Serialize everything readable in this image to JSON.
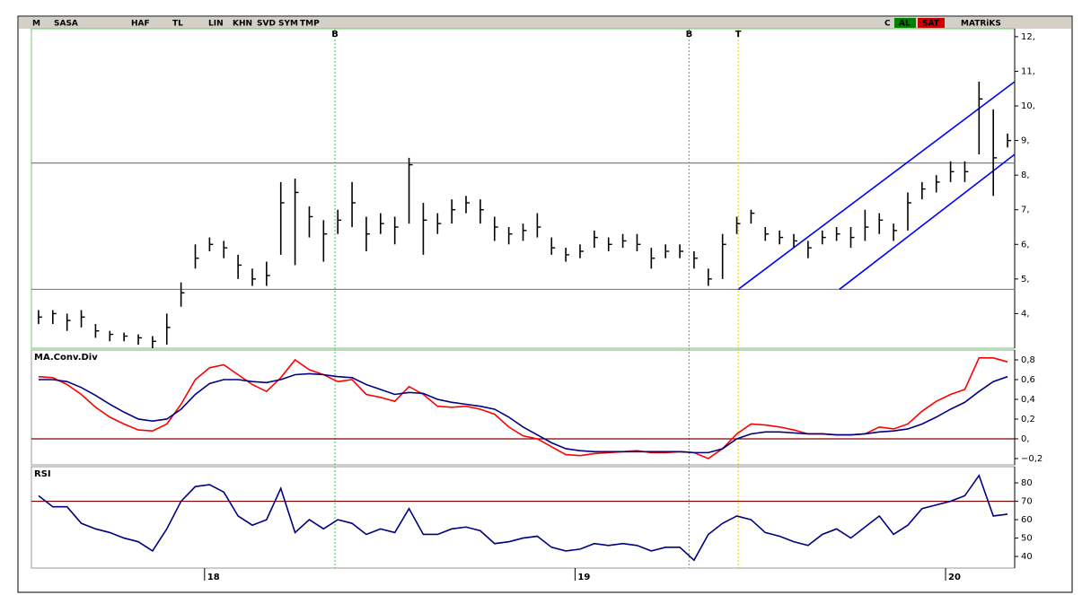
{
  "toolbar": {
    "logo": "M",
    "symbol": "SASA",
    "buttons": [
      "HAF",
      "TL",
      "LIN",
      "KHN",
      "SVD",
      "SYM",
      "TMP"
    ],
    "right": [
      "C",
      "AL",
      "SAT"
    ],
    "brand": "MATRiKS"
  },
  "chart_data": [
    {
      "type": "ohlc",
      "color": "#000000",
      "x": [
        1,
        3,
        5,
        7,
        9,
        11,
        13,
        15,
        17,
        19,
        21,
        23,
        25,
        27,
        29,
        31,
        33,
        35,
        37,
        39,
        41,
        43,
        45,
        47,
        49,
        51,
        53,
        55,
        57,
        59,
        61,
        63,
        65,
        67,
        69,
        71,
        73,
        75,
        77,
        79,
        81,
        83,
        85,
        87,
        89,
        91,
        93,
        95,
        97,
        99,
        101,
        103,
        105,
        107,
        109,
        111,
        113,
        115,
        117,
        119,
        121,
        123,
        125,
        127,
        129,
        131,
        133,
        135,
        137
      ],
      "high": [
        4.1,
        4.1,
        4.0,
        4.1,
        3.7,
        3.5,
        3.45,
        3.4,
        3.35,
        4.0,
        4.9,
        6.0,
        6.2,
        6.1,
        5.7,
        5.3,
        5.5,
        7.8,
        7.9,
        7.1,
        6.7,
        7.0,
        7.8,
        6.8,
        6.9,
        6.8,
        8.5,
        7.2,
        6.9,
        7.3,
        7.4,
        7.3,
        6.8,
        6.5,
        6.6,
        6.9,
        6.2,
        5.9,
        6.0,
        6.4,
        6.2,
        6.3,
        6.3,
        5.9,
        6.0,
        6.0,
        5.8,
        5.3,
        6.3,
        6.8,
        7.0,
        6.5,
        6.4,
        6.3,
        6.1,
        6.4,
        6.5,
        6.5,
        7.0,
        6.9,
        6.6,
        7.5,
        7.8,
        8.0,
        8.4,
        8.4,
        10.7,
        9.9,
        9.2
      ],
      "low": [
        3.7,
        3.7,
        3.5,
        3.6,
        3.3,
        3.2,
        3.2,
        3.1,
        3.0,
        3.1,
        4.2,
        5.3,
        5.8,
        5.6,
        5.0,
        4.8,
        4.8,
        5.7,
        5.4,
        6.2,
        5.5,
        6.3,
        6.5,
        5.8,
        6.3,
        6.0,
        6.6,
        5.7,
        6.3,
        6.6,
        6.9,
        6.6,
        6.1,
        6.0,
        6.1,
        6.2,
        5.7,
        5.5,
        5.6,
        5.9,
        5.8,
        5.9,
        5.8,
        5.3,
        5.6,
        5.6,
        5.3,
        4.8,
        5.0,
        6.3,
        6.6,
        6.1,
        6.0,
        5.9,
        5.6,
        6.0,
        6.1,
        5.9,
        6.1,
        6.3,
        6.1,
        6.4,
        7.3,
        7.5,
        7.8,
        7.8,
        8.6,
        7.4,
        8.8
      ],
      "close": [
        3.9,
        4.0,
        3.8,
        3.9,
        3.5,
        3.4,
        3.35,
        3.3,
        3.2,
        3.6,
        4.6,
        5.6,
        6.0,
        5.9,
        5.4,
        5.0,
        5.1,
        7.2,
        7.5,
        6.8,
        6.3,
        6.7,
        7.2,
        6.3,
        6.6,
        6.5,
        8.3,
        6.7,
        6.6,
        7.0,
        7.2,
        7.0,
        6.5,
        6.3,
        6.4,
        6.5,
        5.9,
        5.7,
        5.8,
        6.2,
        6.0,
        6.1,
        6.0,
        5.6,
        5.8,
        5.8,
        5.6,
        5.0,
        6.0,
        6.6,
        6.9,
        6.3,
        6.2,
        6.1,
        5.9,
        6.2,
        6.3,
        6.2,
        6.5,
        6.7,
        6.4,
        7.2,
        7.6,
        7.8,
        8.1,
        8.1,
        10.2,
        8.5,
        9.0
      ],
      "h_lines": [
        8.35,
        4.7
      ],
      "h_line_color": "#808080",
      "trend_lines": [
        {
          "x": [
            99.2,
            138
          ],
          "y": [
            4.7,
            10.7
          ]
        },
        {
          "x": [
            113.4,
            138
          ],
          "y": [
            4.7,
            8.6
          ]
        }
      ],
      "trend_color": "#0000ff",
      "signals": [
        {
          "x": 42.6,
          "label": "B",
          "color": "#33cc33"
        },
        {
          "x": 92.3,
          "label": "B",
          "color": "#33cc33"
        },
        {
          "x": 99.2,
          "label": "T",
          "color": "#e6d000"
        }
      ],
      "xlim": [
        0,
        138
      ],
      "ylim": [
        3,
        12.23
      ],
      "yticks": [
        {
          "value": 12,
          "label": "12,"
        },
        {
          "value": 11,
          "label": "11,"
        },
        {
          "value": 10,
          "label": "10,"
        },
        {
          "value": 9,
          "label": "9,"
        },
        {
          "value": 8,
          "label": "8,"
        },
        {
          "value": 7,
          "label": "7,"
        },
        {
          "value": 6,
          "label": "6,"
        },
        {
          "value": 5,
          "label": "5,"
        },
        {
          "value": 4,
          "label": "4,"
        }
      ]
    },
    {
      "type": "line",
      "title": "MA.Conv.Div",
      "x": [
        1,
        3,
        5,
        7,
        9,
        11,
        13,
        15,
        17,
        19,
        21,
        23,
        25,
        27,
        29,
        31,
        33,
        35,
        37,
        39,
        41,
        43,
        45,
        47,
        49,
        51,
        53,
        55,
        57,
        59,
        61,
        63,
        65,
        67,
        69,
        71,
        73,
        75,
        77,
        79,
        81,
        83,
        85,
        87,
        89,
        91,
        93,
        95,
        97,
        99,
        101,
        103,
        105,
        107,
        109,
        111,
        113,
        115,
        117,
        119,
        121,
        123,
        125,
        127,
        129,
        131,
        133,
        135,
        137
      ],
      "series": [
        {
          "color": "#ff0000",
          "values": [
            0.63,
            0.62,
            0.55,
            0.45,
            0.32,
            0.22,
            0.15,
            0.09,
            0.08,
            0.15,
            0.35,
            0.6,
            0.72,
            0.75,
            0.65,
            0.55,
            0.48,
            0.62,
            0.8,
            0.7,
            0.65,
            0.58,
            0.6,
            0.45,
            0.42,
            0.38,
            0.53,
            0.45,
            0.33,
            0.32,
            0.33,
            0.3,
            0.25,
            0.12,
            0.03,
            0.0,
            -0.08,
            -0.16,
            -0.17,
            -0.15,
            -0.14,
            -0.13,
            -0.12,
            -0.14,
            -0.14,
            -0.13,
            -0.14,
            -0.2,
            -0.1,
            0.05,
            0.15,
            0.14,
            0.12,
            0.09,
            0.05,
            0.05,
            0.04,
            0.04,
            0.05,
            0.12,
            0.1,
            0.15,
            0.28,
            0.38,
            0.45,
            0.5,
            0.82,
            0.82,
            0.78
          ]
        },
        {
          "color": "#000080",
          "values": [
            0.6,
            0.6,
            0.58,
            0.52,
            0.44,
            0.35,
            0.27,
            0.2,
            0.18,
            0.2,
            0.3,
            0.45,
            0.56,
            0.6,
            0.6,
            0.58,
            0.57,
            0.6,
            0.65,
            0.66,
            0.65,
            0.63,
            0.62,
            0.55,
            0.5,
            0.45,
            0.47,
            0.46,
            0.4,
            0.37,
            0.35,
            0.33,
            0.3,
            0.22,
            0.12,
            0.04,
            -0.04,
            -0.1,
            -0.12,
            -0.13,
            -0.13,
            -0.13,
            -0.13,
            -0.13,
            -0.13,
            -0.13,
            -0.14,
            -0.14,
            -0.1,
            0.0,
            0.05,
            0.07,
            0.07,
            0.06,
            0.05,
            0.05,
            0.04,
            0.04,
            0.05,
            0.07,
            0.08,
            0.1,
            0.15,
            0.22,
            0.3,
            0.37,
            0.48,
            0.58,
            0.63
          ]
        }
      ],
      "h_lines": [
        0
      ],
      "h_line_color": "#800000",
      "xlim": [
        0,
        138
      ],
      "ylim": [
        -0.264,
        0.9
      ],
      "yticks": [
        {
          "value": 0.8,
          "label": "0,8"
        },
        {
          "value": 0.6,
          "label": "0,6"
        },
        {
          "value": 0.4,
          "label": "0,4"
        },
        {
          "value": 0.2,
          "label": "0,2"
        },
        {
          "value": 0,
          "label": "0,"
        },
        {
          "value": -0.2,
          "label": "−0,2"
        }
      ]
    },
    {
      "type": "line",
      "title": "RSI",
      "x": [
        1,
        3,
        5,
        7,
        9,
        11,
        13,
        15,
        17,
        19,
        21,
        23,
        25,
        27,
        29,
        31,
        33,
        35,
        37,
        39,
        41,
        43,
        45,
        47,
        49,
        51,
        53,
        55,
        57,
        59,
        61,
        63,
        65,
        67,
        69,
        71,
        73,
        75,
        77,
        79,
        81,
        83,
        85,
        87,
        89,
        91,
        93,
        95,
        97,
        99,
        101,
        103,
        105,
        107,
        109,
        111,
        113,
        115,
        117,
        119,
        121,
        123,
        125,
        127,
        129,
        131,
        133,
        135,
        137
      ],
      "series": [
        {
          "color": "#000080",
          "values": [
            73,
            67,
            67,
            58,
            55,
            53,
            50,
            48,
            43,
            55,
            70,
            78,
            79,
            75,
            62,
            57,
            60,
            77,
            53,
            60,
            55,
            60,
            58,
            52,
            55,
            53,
            66,
            52,
            52,
            55,
            56,
            54,
            47,
            48,
            50,
            51,
            45,
            43,
            44,
            47,
            46,
            47,
            46,
            43,
            45,
            45,
            38,
            52,
            58,
            62,
            60,
            53,
            51,
            48,
            46,
            52,
            55,
            50,
            56,
            62,
            52,
            57,
            66,
            68,
            70,
            73,
            84,
            62,
            63
          ]
        }
      ],
      "h_lines": [
        70
      ],
      "h_line_color": "#800000",
      "xlim": [
        0,
        138
      ],
      "ylim": [
        33.7,
        88.8
      ],
      "yticks": [
        80,
        70,
        60,
        50,
        40
      ],
      "xticks": [
        {
          "value": 24.3,
          "label": "18"
        },
        {
          "value": 76.3,
          "label": "19"
        },
        {
          "value": 128.3,
          "label": "20"
        }
      ]
    }
  ]
}
